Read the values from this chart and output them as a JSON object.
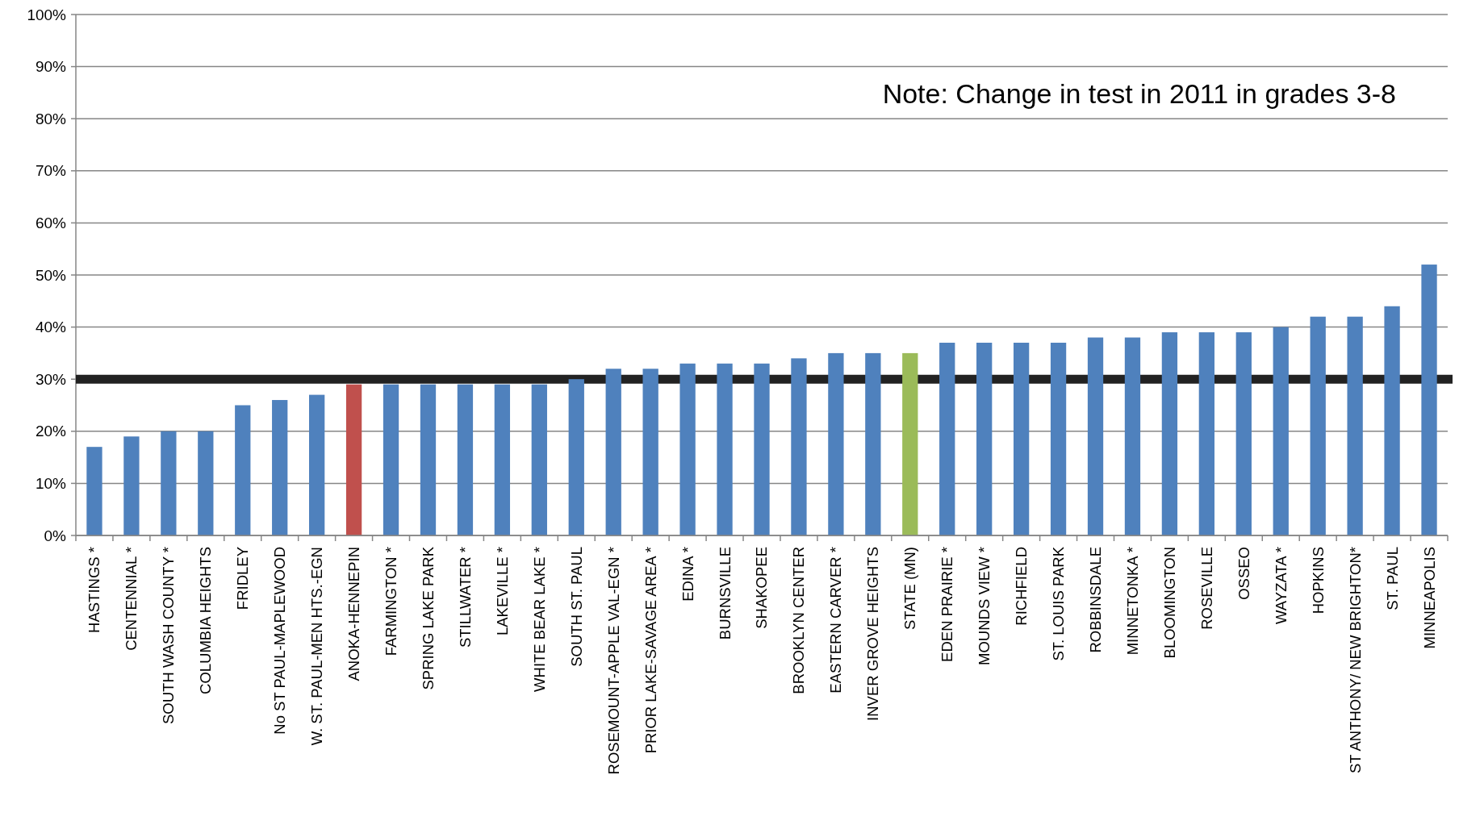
{
  "chart_data": {
    "type": "bar",
    "categories": [
      "HASTINGS *",
      "CENTENNIAL *",
      "SOUTH WASH COUNTY *",
      "COLUMBIA HEIGHTS",
      "FRIDLEY",
      "No ST PAUL-MAPLEWOOD",
      "W. ST. PAUL-MEN HTS.-EGN",
      "ANOKA-HENNEPIN",
      "FARMINGTON *",
      "SPRING LAKE PARK",
      "STILLWATER  *",
      "LAKEVILLE *",
      "WHITE BEAR LAKE *",
      "SOUTH ST. PAUL",
      "ROSEMOUNT-APPLE VAL-EGN *",
      "PRIOR LAKE-SAVAGE AREA *",
      "EDINA *",
      "BURNSVILLE",
      "SHAKOPEE",
      "BROOKLYN CENTER",
      "EASTERN CARVER *",
      "INVER GROVE HEIGHTS",
      "STATE (MN)",
      "EDEN PRAIRIE *",
      "MOUNDS VIEW *",
      "RICHFIELD",
      "ST. LOUIS PARK",
      "ROBBINSDALE",
      "MINNETONKA *",
      "BLOOMINGTON",
      "ROSEVILLE",
      "OSSEO",
      "WAYZATA *",
      "HOPKINS",
      "ST ANTHONY/ NEW BRIGHTON*",
      "ST. PAUL",
      "MINNEAPOLIS"
    ],
    "values": [
      17,
      19,
      20,
      20,
      25,
      26,
      27,
      29,
      29,
      29,
      29,
      29,
      29,
      30,
      32,
      32,
      33,
      33,
      33,
      34,
      35,
      35,
      35,
      37,
      37,
      37,
      37,
      38,
      38,
      39,
      39,
      39,
      40,
      42,
      42,
      44,
      52
    ],
    "colors": [
      "#4f81bd",
      "#4f81bd",
      "#4f81bd",
      "#4f81bd",
      "#4f81bd",
      "#4f81bd",
      "#4f81bd",
      "#c0504d",
      "#4f81bd",
      "#4f81bd",
      "#4f81bd",
      "#4f81bd",
      "#4f81bd",
      "#4f81bd",
      "#4f81bd",
      "#4f81bd",
      "#4f81bd",
      "#4f81bd",
      "#4f81bd",
      "#4f81bd",
      "#4f81bd",
      "#4f81bd",
      "#9bbb59",
      "#4f81bd",
      "#4f81bd",
      "#4f81bd",
      "#4f81bd",
      "#4f81bd",
      "#4f81bd",
      "#4f81bd",
      "#4f81bd",
      "#4f81bd",
      "#4f81bd",
      "#4f81bd",
      "#4f81bd",
      "#4f81bd",
      "#4f81bd"
    ],
    "ylim": [
      0,
      100
    ],
    "yticks": [
      {
        "value": 0,
        "label": "0%"
      },
      {
        "value": 10,
        "label": "10%"
      },
      {
        "value": 20,
        "label": "20%"
      },
      {
        "value": 30,
        "label": "30%"
      },
      {
        "value": 40,
        "label": "40%"
      },
      {
        "value": 50,
        "label": "50%"
      },
      {
        "value": 60,
        "label": "60%"
      },
      {
        "value": 70,
        "label": "70%"
      },
      {
        "value": 80,
        "label": "80%"
      },
      {
        "value": 90,
        "label": "90%"
      },
      {
        "value": 100,
        "label": "100%"
      }
    ],
    "grid": "y",
    "ref_lines": [
      {
        "axis": "y",
        "value": 30,
        "color": "#222222"
      }
    ],
    "annotations": [
      "Note: Change in test in 2011 in grades 3-8"
    ]
  }
}
